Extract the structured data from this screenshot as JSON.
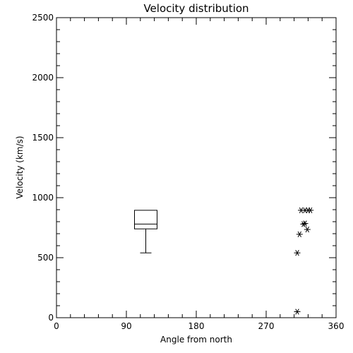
{
  "chart_data": {
    "type": "scatter",
    "title": "Velocity distribution",
    "xlabel": "Angle from north",
    "ylabel": "Velocity (km/s)",
    "xlim": [
      0,
      360
    ],
    "ylim": [
      0,
      2500
    ],
    "x_ticks": [
      "0",
      "90",
      "180",
      "270",
      "360"
    ],
    "y_ticks": [
      "0",
      "500",
      "1000",
      "1500",
      "2000",
      "2500"
    ],
    "x_tick_values": [
      0,
      90,
      180,
      270,
      360
    ],
    "y_tick_values": [
      0,
      500,
      1000,
      1500,
      2000,
      2500
    ],
    "x_minor_step": 18,
    "y_minor_step": 100,
    "grid": false,
    "box": {
      "x": 115,
      "q1": 740,
      "median": 780,
      "q3": 895,
      "whisker_low": 540,
      "whisker_high": 895
    },
    "points": [
      {
        "x": 310,
        "y": 50
      },
      {
        "x": 310,
        "y": 540
      },
      {
        "x": 313,
        "y": 695
      },
      {
        "x": 315,
        "y": 895
      },
      {
        "x": 318,
        "y": 780
      },
      {
        "x": 320,
        "y": 785
      },
      {
        "x": 320,
        "y": 895
      },
      {
        "x": 323,
        "y": 735
      },
      {
        "x": 324,
        "y": 895
      },
      {
        "x": 327,
        "y": 895
      }
    ],
    "marker": "asterisk",
    "color": "#000000"
  }
}
